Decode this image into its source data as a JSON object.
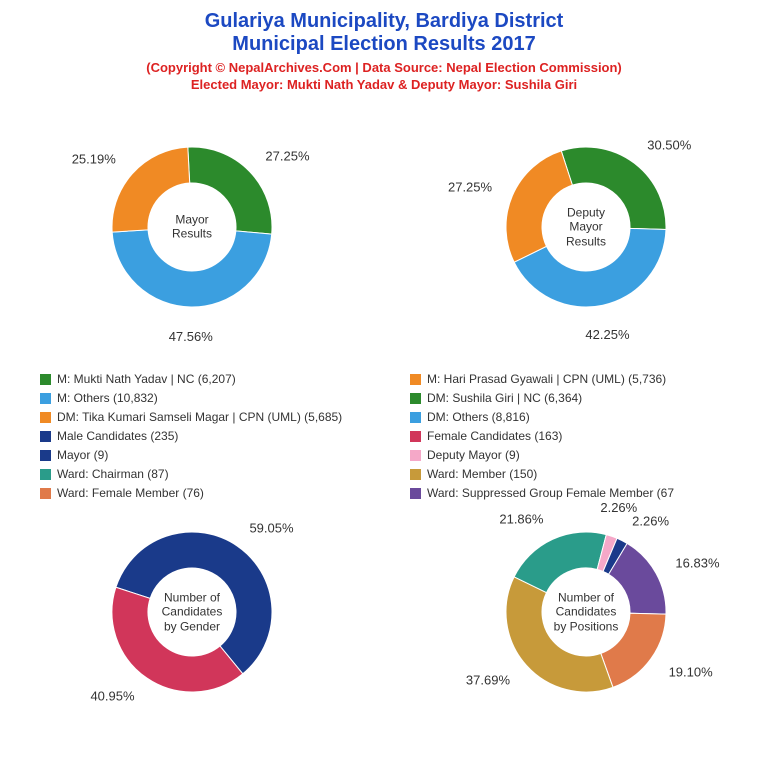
{
  "title": {
    "line1": "Gulariya Municipality, Bardiya District",
    "line2": "Municipal Election Results 2017",
    "color": "#1c49c2",
    "fontsize": 20
  },
  "subtitle": {
    "line1": "(Copyright © NepalArchives.Com | Data Source: Nepal Election Commission)",
    "line2": "Elected Mayor: Mukti Nath Yadav & Deputy Mayor: Sushila Giri",
    "color": "#d22",
    "fontsize": 13
  },
  "background_color": "#ffffff",
  "donut_inner_ratio": 0.55,
  "charts": {
    "mayor": {
      "center_label": "Mayor\nResults",
      "slices": [
        {
          "label": "27.25%",
          "value": 27.25,
          "color": "#2c8a2c"
        },
        {
          "label": "47.56%",
          "value": 47.56,
          "color": "#3b9fe0"
        },
        {
          "label": "25.19%",
          "value": 25.19,
          "color": "#f08a24"
        }
      ],
      "start_angle": -3
    },
    "deputy_mayor": {
      "center_label": "Deputy\nMayor\nResults",
      "slices": [
        {
          "label": "30.50%",
          "value": 30.5,
          "color": "#2c8a2c"
        },
        {
          "label": "42.25%",
          "value": 42.25,
          "color": "#3b9fe0"
        },
        {
          "label": "27.25%",
          "value": 27.25,
          "color": "#f08a24"
        }
      ],
      "start_angle": -18
    },
    "gender": {
      "center_label": "Number of\nCandidates\nby Gender",
      "slices": [
        {
          "label": "59.05%",
          "value": 59.05,
          "color": "#1a3a8a"
        },
        {
          "label": "40.95%",
          "value": 40.95,
          "color": "#d1365a"
        }
      ],
      "start_angle": -72
    },
    "positions": {
      "center_label": "Number of\nCandidates\nby Positions",
      "slices": [
        {
          "label": "21.86%",
          "value": 21.86,
          "color": "#2a9c8a"
        },
        {
          "label": "2.26%",
          "value": 2.26,
          "color": "#f5a8c8"
        },
        {
          "label": "2.26%",
          "value": 2.26,
          "color": "#1a3a8a"
        },
        {
          "label": "16.83%",
          "value": 16.83,
          "color": "#6a4a9c"
        },
        {
          "label": "19.10%",
          "value": 19.1,
          "color": "#e07a4a"
        },
        {
          "label": "37.69%",
          "value": 37.69,
          "color": "#c79a3a"
        }
      ],
      "start_angle": -64
    }
  },
  "legend": {
    "fontsize": 12,
    "left_col": [
      {
        "color": "#2c8a2c",
        "text": "M: Mukti Nath Yadav | NC (6,207)"
      },
      {
        "color": "#3b9fe0",
        "text": "M: Others (10,832)"
      },
      {
        "color": "#f08a24",
        "text": "DM: Tika Kumari Samseli Magar | CPN (UML) (5,685)"
      },
      {
        "color": "#1a3a8a",
        "text": "Male Candidates (235)"
      },
      {
        "color": "#1a3a8a",
        "text": "Mayor (9)"
      },
      {
        "color": "#2a9c8a",
        "text": "Ward: Chairman (87)"
      },
      {
        "color": "#e07a4a",
        "text": "Ward: Female Member (76)"
      }
    ],
    "right_col": [
      {
        "color": "#f08a24",
        "text": "M: Hari Prasad Gyawali | CPN (UML) (5,736)"
      },
      {
        "color": "#2c8a2c",
        "text": "DM: Sushila Giri | NC (6,364)"
      },
      {
        "color": "#3b9fe0",
        "text": "DM: Others (8,816)"
      },
      {
        "color": "#d1365a",
        "text": "Female Candidates (163)"
      },
      {
        "color": "#f5a8c8",
        "text": "Deputy Mayor (9)"
      },
      {
        "color": "#c79a3a",
        "text": "Ward: Member (150)"
      },
      {
        "color": "#6a4a9c",
        "text": "Ward: Suppressed Group Female Member (67"
      }
    ]
  },
  "label_fontsize": 13
}
